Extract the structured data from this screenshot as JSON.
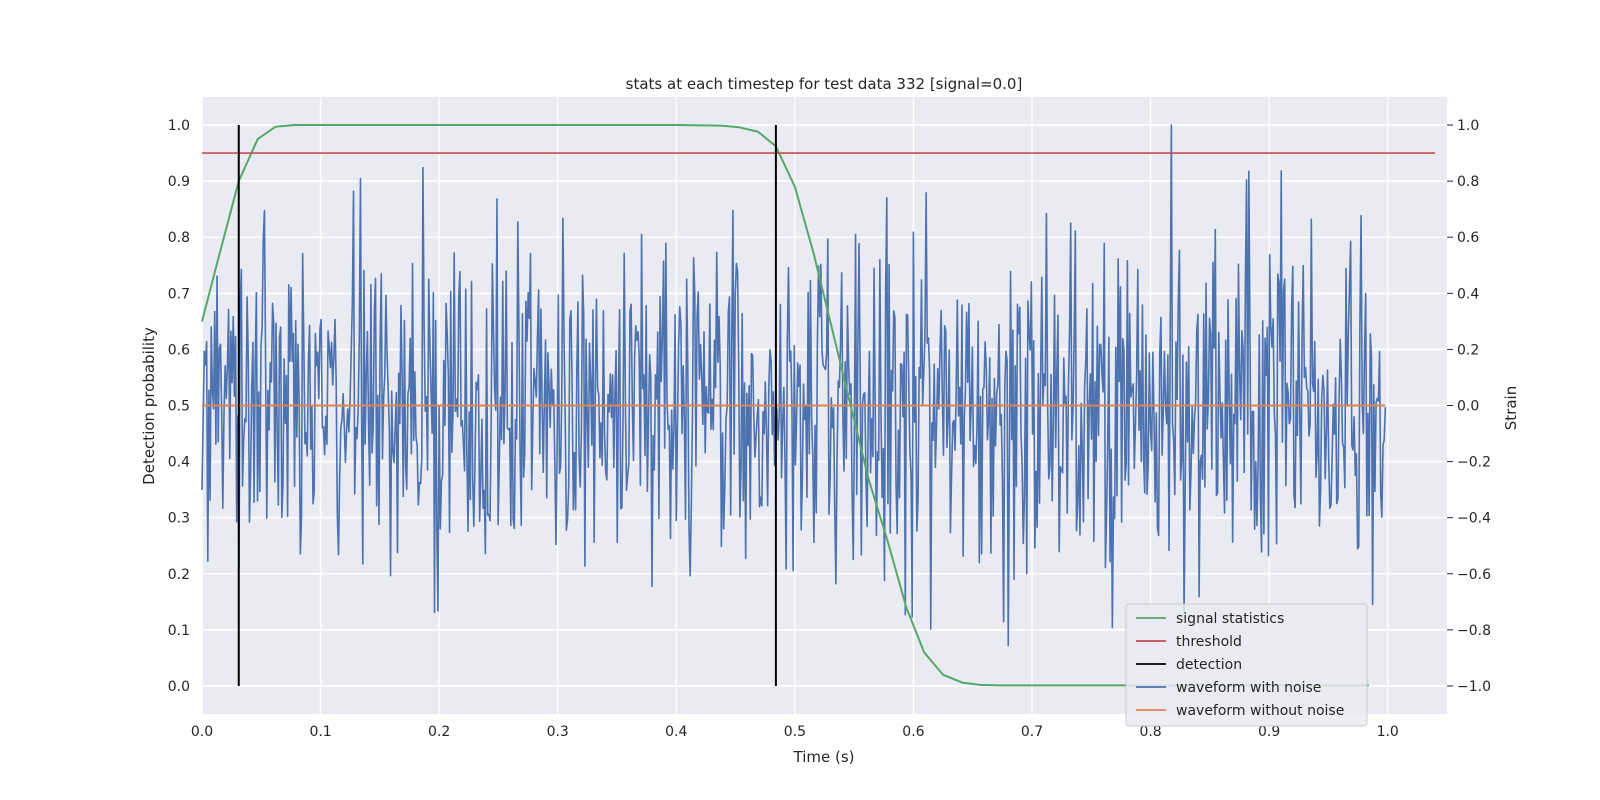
{
  "chart_data": {
    "type": "line",
    "title": "stats at each timestep for test data 332 [signal=0.0]",
    "xlabel": "Time (s)",
    "ylabel": "Detection probability",
    "y2label": "Strain",
    "xlim": [
      0.0,
      1.05
    ],
    "ylim": [
      -0.05,
      1.05
    ],
    "y2lim": [
      -1.1,
      1.1
    ],
    "xticks": [
      "0.0",
      "0.1",
      "0.2",
      "0.3",
      "0.4",
      "0.5",
      "0.6",
      "0.7",
      "0.8",
      "0.9",
      "1.0"
    ],
    "yticks": [
      "0.0",
      "0.1",
      "0.2",
      "0.3",
      "0.4",
      "0.5",
      "0.6",
      "0.7",
      "0.8",
      "0.9",
      "1.0"
    ],
    "y2ticks": [
      "−1.0",
      "−0.8",
      "−0.6",
      "−0.4",
      "−0.2",
      "0.0",
      "0.2",
      "0.4",
      "0.6",
      "0.8",
      "1.0"
    ],
    "grid": true,
    "legend_position": "lower-right",
    "colors": {
      "signal_statistics": "#55a868",
      "threshold": "#c44e52",
      "detection": "#000000",
      "waveform_with_noise": "#4c72b0",
      "waveform_without_noise": "#dd8452",
      "axes_background": "#eaeaf2",
      "grid": "#ffffff"
    },
    "series": [
      {
        "name": "signal statistics",
        "axis": "left",
        "x": [
          0.0,
          0.016,
          0.031,
          0.047,
          0.062,
          0.078,
          0.094,
          0.109,
          0.125,
          0.2,
          0.3,
          0.4,
          0.438,
          0.453,
          0.469,
          0.484,
          0.5,
          0.516,
          0.531,
          0.547,
          0.562,
          0.578,
          0.594,
          0.609,
          0.625,
          0.641,
          0.656,
          0.672,
          0.7,
          0.8,
          0.9,
          0.984
        ],
        "y": [
          0.65,
          0.78,
          0.9,
          0.975,
          0.997,
          1.0,
          1.0,
          1.0,
          1.0,
          1.0,
          1.0,
          1.0,
          0.999,
          0.996,
          0.988,
          0.962,
          0.89,
          0.77,
          0.64,
          0.5,
          0.37,
          0.26,
          0.14,
          0.06,
          0.02,
          0.006,
          0.002,
          0.001,
          0.001,
          0.001,
          0.001,
          0.001
        ]
      },
      {
        "name": "threshold",
        "axis": "left",
        "x": [
          0.0,
          1.04
        ],
        "y": [
          0.95,
          0.95
        ]
      },
      {
        "name": "detection",
        "axis": "left",
        "x": [
          0.031,
          0.484
        ],
        "y_range": [
          0.0,
          1.0
        ]
      },
      {
        "name": "waveform with noise",
        "axis": "right",
        "x_range": [
          0.0,
          0.998
        ],
        "num_samples": 1024,
        "y_summary": "noise-like strain fluctuating roughly between -0.95 and 1.0",
        "y_noise_std": 0.3,
        "y_peak_max": 1.0,
        "y_peak_min": -0.95
      },
      {
        "name": "waveform without noise",
        "axis": "right",
        "x": [
          0.0,
          0.998
        ],
        "y": [
          0.0,
          0.0
        ]
      }
    ]
  }
}
